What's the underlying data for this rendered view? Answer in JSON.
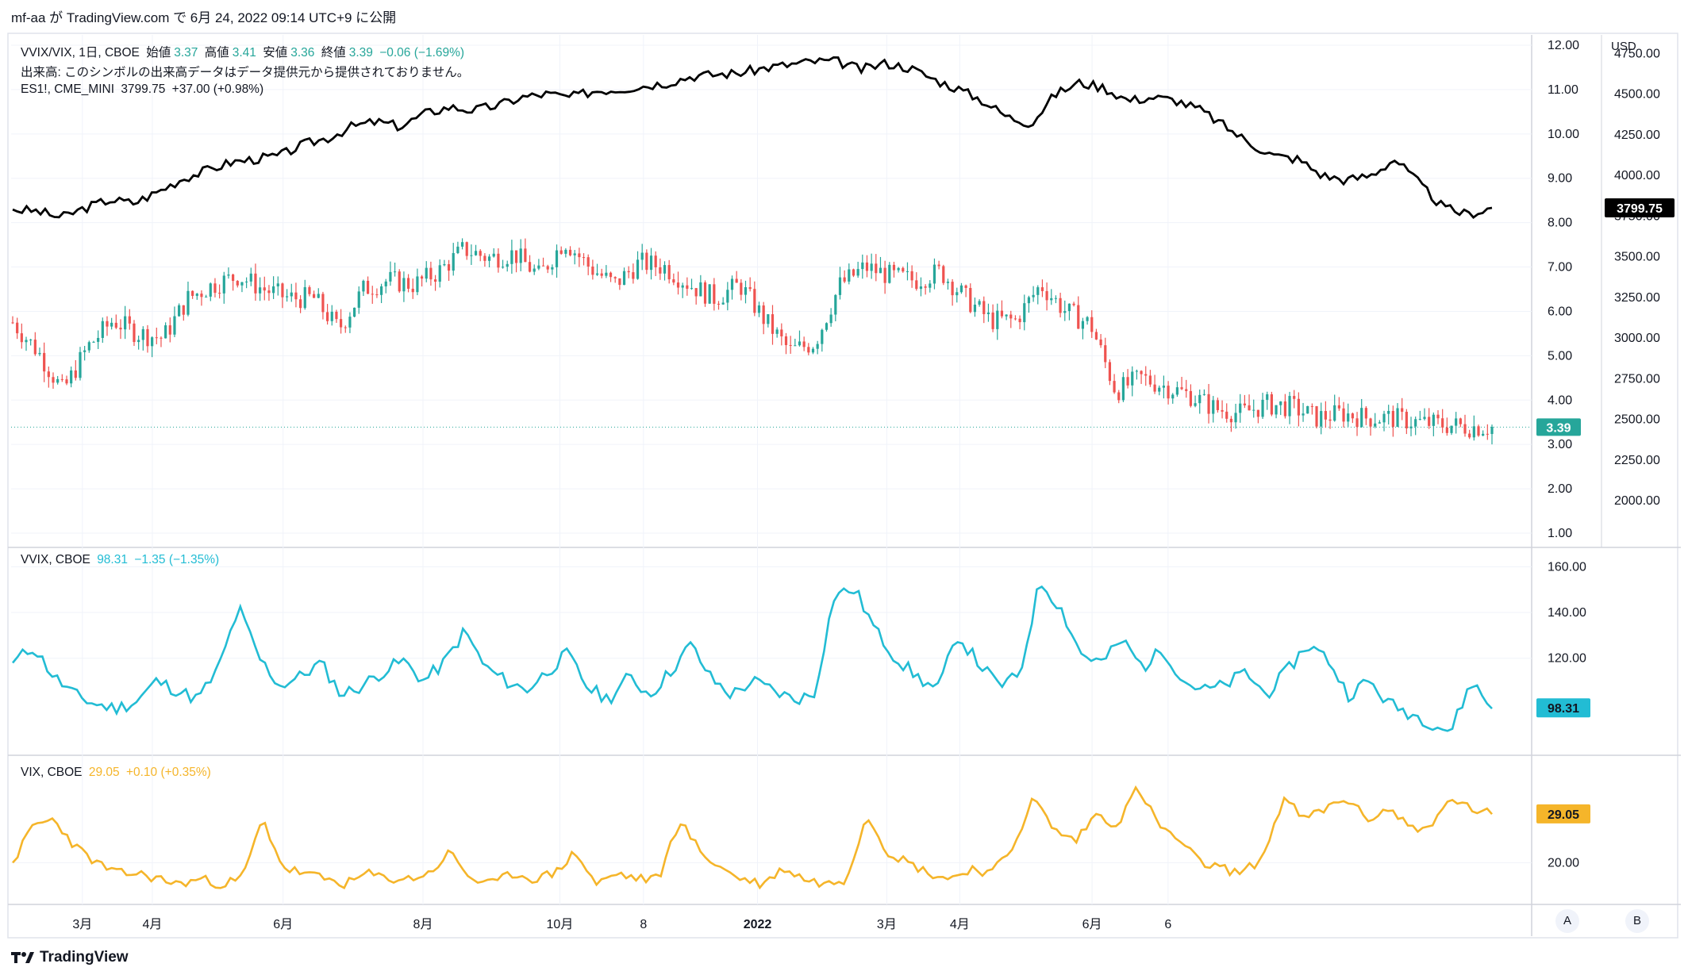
{
  "header": "mf-aa が TradingView.com で 6月 24, 2022 09:14 UTC+9 に公開",
  "legend_main": {
    "line1": {
      "symbol": "VVIX/VIX, 1日, CBOE",
      "o_label": "始値",
      "o": "3.37",
      "h_label": "高値",
      "h": "3.41",
      "l_label": "安値",
      "l": "3.36",
      "c_label": "終値",
      "c": "3.39",
      "chg": "−0.06 (−1.69%)"
    },
    "line2": "出来高: このシンボルの出来高データはデータ提供元から提供されておりません。",
    "line3": {
      "symbol": "ES1!, CME_MINI",
      "value": "3799.75",
      "chg": "+37.00 (+0.98%)"
    }
  },
  "legend_vvix": {
    "symbol": "VVIX, CBOE",
    "value": "98.31",
    "chg": "−1.35 (−1.35%)"
  },
  "legend_vix": {
    "symbol": "VIX, CBOE",
    "value": "29.05",
    "chg": "+0.10 (+0.35%)"
  },
  "currency": "USD",
  "footer": "TradingView",
  "buttons": {
    "a": "A",
    "b": "B"
  },
  "colors": {
    "up": "#26a69a",
    "down": "#ef5350",
    "es": "#000000",
    "vvix": "#22bcd4",
    "vix": "#f5b52a"
  },
  "chart_data": [
    {
      "type": "candlestick",
      "name": "VVIX/VIX, 1日, CBOE",
      "x_ticks": [
        "3月",
        "4月",
        "6月",
        "8月",
        "10月",
        "8",
        "2022",
        "3月",
        "4月",
        "6月",
        "6"
      ],
      "y_ticks": [
        "12.00",
        "11.00",
        "10.00",
        "9.00",
        "8.00",
        "7.00",
        "6.00",
        "5.00",
        "4.00",
        "3.00",
        "2.00",
        "1.00"
      ],
      "ylim": [
        1,
        12
      ],
      "last": 3.39,
      "path": [
        5.75,
        5.1,
        4.2,
        5.2,
        5.8,
        5.5,
        5.4,
        6.3,
        6.6,
        6.8,
        6.5,
        6.3,
        6.3,
        5.6,
        6.5,
        6.7,
        6.6,
        6.9,
        7.4,
        7.2,
        7.3,
        6.8,
        7.6,
        7.0,
        6.6,
        7.1,
        7.0,
        6.6,
        6.3,
        6.6,
        5.8,
        5.1,
        5.3,
        6.6,
        7.0,
        6.8,
        6.7,
        6.9,
        6.3,
        5.8,
        5.8,
        6.6,
        6.0,
        5.7,
        4.2,
        4.5,
        4.3,
        4.1,
        3.8,
        3.7,
        3.9,
        3.85,
        3.6,
        3.7,
        3.6,
        3.6,
        3.5,
        3.45,
        3.4,
        3.39
      ],
      "ohlc_last": {
        "open": 3.37,
        "high": 3.41,
        "low": 3.36,
        "close": 3.39
      }
    },
    {
      "type": "line",
      "name": "ES1!, CME_MINI",
      "y_ticks": [
        "4750.00",
        "4500.00",
        "4250.00",
        "4000.00",
        "3750.00",
        "3500.00",
        "3250.00",
        "3000.00",
        "2750.00",
        "2500.00",
        "2250.00",
        "2000.00"
      ],
      "ylim": [
        1800,
        4800
      ],
      "last": 3799.75,
      "path": [
        3790,
        3780,
        3740,
        3800,
        3850,
        3830,
        3900,
        3980,
        4030,
        4080,
        4100,
        4120,
        4190,
        4230,
        4300,
        4330,
        4300,
        4380,
        4420,
        4400,
        4430,
        4480,
        4500,
        4480,
        4520,
        4530,
        4550,
        4570,
        4610,
        4620,
        4630,
        4660,
        4680,
        4700,
        4700,
        4650,
        4690,
        4660,
        4590,
        4530,
        4460,
        4360,
        4320,
        4500,
        4570,
        4540,
        4460,
        4480,
        4460,
        4400,
        4300,
        4200,
        4120,
        4100,
        4000,
        3970,
        4000,
        4100,
        3950,
        3800,
        3760,
        3800
      ]
    },
    {
      "type": "line",
      "name": "VVIX, CBOE",
      "y_ticks": [
        "160.00",
        "140.00",
        "120.00"
      ],
      "ylim": [
        80,
        165
      ],
      "last": 98.31,
      "path": [
        118,
        125,
        112,
        104,
        100,
        98,
        101,
        110,
        106,
        102,
        115,
        142,
        120,
        108,
        112,
        118,
        104,
        108,
        114,
        119,
        110,
        118,
        132,
        116,
        110,
        106,
        114,
        122,
        107,
        102,
        112,
        104,
        114,
        126,
        111,
        104,
        110,
        106,
        102,
        104,
        148,
        150,
        132,
        120,
        112,
        106,
        130,
        118,
        108,
        112,
        154,
        142,
        122,
        118,
        128,
        116,
        124,
        110,
        106,
        108,
        114,
        104,
        114,
        126,
        120,
        104,
        110,
        100,
        96,
        92,
        88,
        110,
        98
      ]
    },
    {
      "type": "line",
      "name": "VIX, CBOE",
      "y_ticks": [
        "20.00"
      ],
      "ylim": [
        13,
        38
      ],
      "last": 29.05,
      "path": [
        20,
        27,
        28,
        23,
        20,
        18,
        18,
        17,
        16,
        17,
        16,
        17,
        28,
        19,
        18,
        17,
        16,
        18,
        17,
        17,
        18,
        22,
        17,
        16,
        18,
        17,
        18,
        22,
        16,
        18,
        17,
        17,
        28,
        22,
        19,
        17,
        16,
        19,
        17,
        16,
        17,
        29,
        22,
        20,
        18,
        17,
        19,
        18,
        23,
        32,
        26,
        24,
        29,
        27,
        34,
        27,
        24,
        20,
        19,
        18,
        21,
        32,
        28,
        30,
        32,
        28,
        30,
        27,
        26,
        32,
        30,
        29
      ]
    }
  ]
}
